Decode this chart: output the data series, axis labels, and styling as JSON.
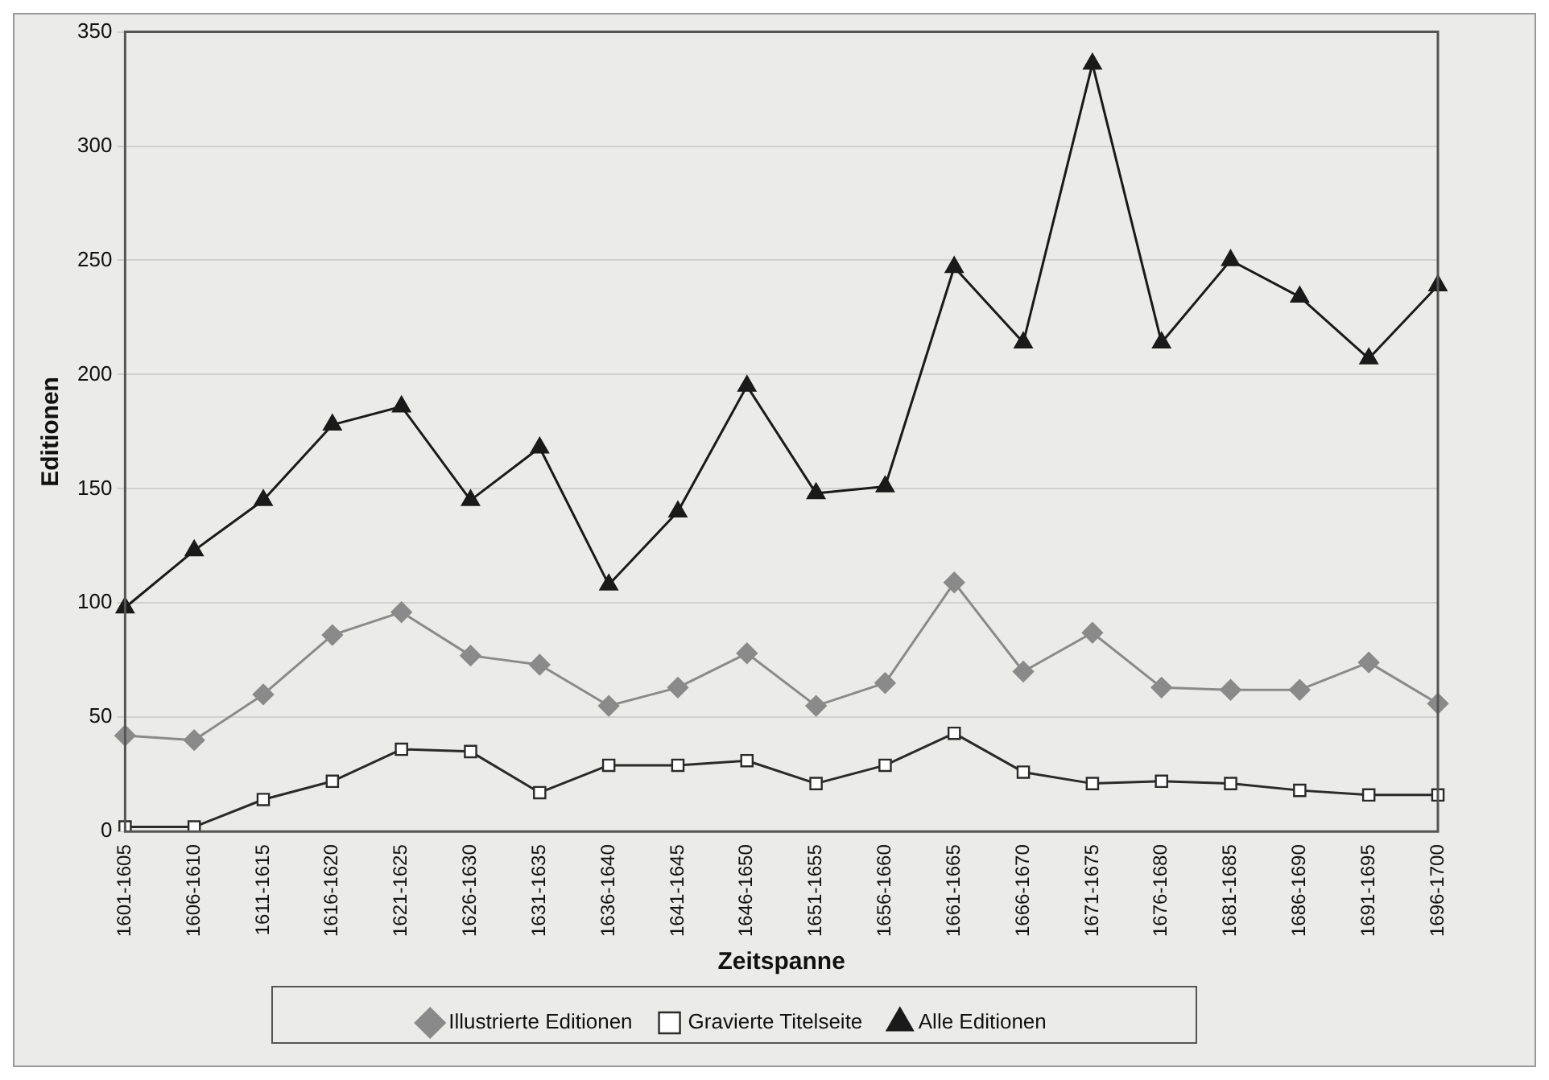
{
  "chart_data": {
    "type": "line",
    "xlabel": "Zeitspanne",
    "ylabel": "Editionen",
    "categories": [
      "1601-1605",
      "1606-1610",
      "1611-1615",
      "1616-1620",
      "1621-1625",
      "1626-1630",
      "1631-1635",
      "1636-1640",
      "1641-1645",
      "1646-1650",
      "1651-1655",
      "1656-1660",
      "1661-1665",
      "1666-1670",
      "1671-1675",
      "1676-1680",
      "1681-1685",
      "1686-1690",
      "1691-1695",
      "1696-1700"
    ],
    "series": [
      {
        "name": "Illustrierte Editionen",
        "color": "#8a8a8a",
        "marker": "diamond",
        "values": [
          42,
          40,
          60,
          86,
          96,
          77,
          73,
          55,
          63,
          78,
          55,
          65,
          109,
          70,
          87,
          63,
          62,
          62,
          74,
          56
        ]
      },
      {
        "name": "Gravierte Titelseite",
        "color": "#2a2a2a",
        "marker": "square",
        "values": [
          2,
          2,
          14,
          22,
          36,
          35,
          17,
          29,
          29,
          31,
          21,
          29,
          43,
          26,
          21,
          22,
          21,
          18,
          16,
          16
        ]
      },
      {
        "name": "Alle Editionen",
        "color": "#1a1a1a",
        "marker": "triangle",
        "values": [
          98,
          123,
          145,
          178,
          186,
          145,
          168,
          108,
          140,
          195,
          148,
          151,
          247,
          214,
          336,
          214,
          250,
          234,
          207,
          239
        ]
      }
    ],
    "ylim": [
      0,
      350
    ],
    "yticks": [
      0,
      50,
      100,
      150,
      200,
      250,
      300,
      350
    ],
    "grid": "y",
    "legend": "bottom",
    "line_style": "solid"
  }
}
